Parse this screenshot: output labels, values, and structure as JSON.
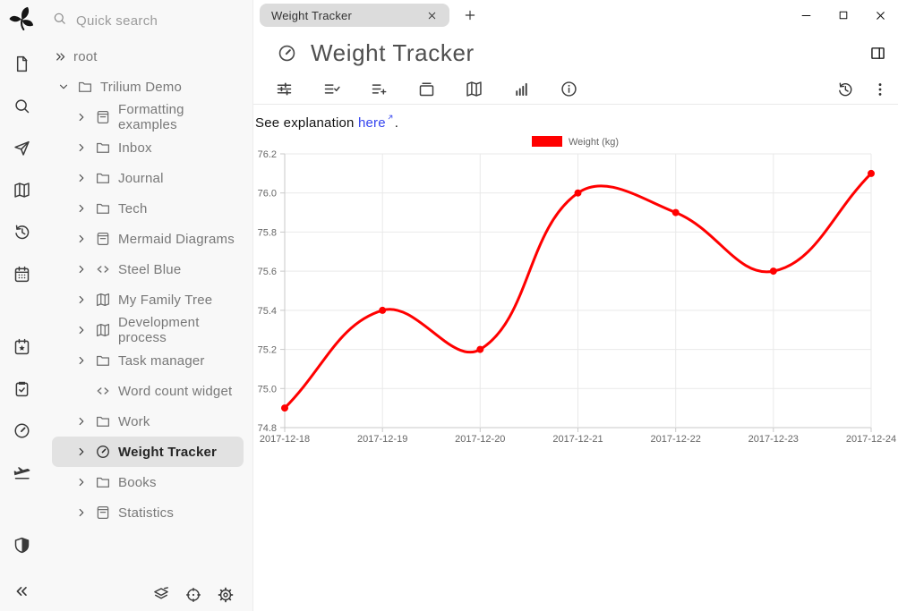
{
  "colors": {
    "sidebar_bg": "#f8f8f8",
    "selection_bg": "#e2e2e2",
    "tab_bg": "#dcdcdc",
    "divider": "#e9e9e9",
    "link": "#3545ef",
    "chart_grid": "#e9e9e9",
    "chart_axis": "#c9c9c9",
    "chart_label": "#666666",
    "chart_line": "#ff0000"
  },
  "search": {
    "placeholder": "Quick search"
  },
  "launcher": {
    "groups": [
      [
        {
          "name": "new-note",
          "icon": "file"
        },
        {
          "name": "search",
          "icon": "search"
        },
        {
          "name": "jump-to-note",
          "icon": "send"
        },
        {
          "name": "note-map",
          "icon": "map"
        },
        {
          "name": "recent-changes",
          "icon": "history"
        },
        {
          "name": "calendar",
          "icon": "calendar"
        }
      ],
      [
        {
          "name": "bookmarks",
          "icon": "calendar-star"
        },
        {
          "name": "task-manager",
          "icon": "task"
        },
        {
          "name": "weight-tracker",
          "icon": "gauge"
        },
        {
          "name": "travel",
          "icon": "plane"
        }
      ],
      [
        {
          "name": "protected-session",
          "icon": "shield"
        }
      ]
    ],
    "collapse": {
      "name": "collapse-pane",
      "icon": "chevrons-left"
    }
  },
  "tree": {
    "items": [
      {
        "label": "root",
        "icon": null,
        "expander": "chevrons-right",
        "level": 0,
        "selected": false
      },
      {
        "label": "Trilium Demo",
        "icon": "folder",
        "expander": "down",
        "level": 1,
        "selected": false
      },
      {
        "label": "Formatting examples",
        "icon": "book",
        "expander": "right",
        "level": 2,
        "selected": false
      },
      {
        "label": "Inbox",
        "icon": "folder",
        "expander": "right",
        "level": 2,
        "selected": false
      },
      {
        "label": "Journal",
        "icon": "folder",
        "expander": "right",
        "level": 2,
        "selected": false
      },
      {
        "label": "Tech",
        "icon": "folder",
        "expander": "right",
        "level": 2,
        "selected": false
      },
      {
        "label": "Mermaid Diagrams",
        "icon": "book",
        "expander": "right",
        "level": 2,
        "selected": false
      },
      {
        "label": "Steel Blue",
        "icon": "code",
        "expander": "right",
        "level": 2,
        "selected": false
      },
      {
        "label": "My Family Tree",
        "icon": "map",
        "expander": "right",
        "level": 2,
        "selected": false
      },
      {
        "label": "Development process",
        "icon": "map",
        "expander": "right",
        "level": 2,
        "selected": false
      },
      {
        "label": "Task manager",
        "icon": "folder",
        "expander": "right",
        "level": 2,
        "selected": false
      },
      {
        "label": "Word count widget",
        "icon": "code",
        "expander": null,
        "level": 2,
        "selected": false
      },
      {
        "label": "Work",
        "icon": "folder",
        "expander": "right",
        "level": 2,
        "selected": false
      },
      {
        "label": "Weight Tracker",
        "icon": "gauge",
        "expander": "right",
        "level": 2,
        "selected": true
      },
      {
        "label": "Books",
        "icon": "folder",
        "expander": "right",
        "level": 2,
        "selected": false
      },
      {
        "label": "Statistics",
        "icon": "book",
        "expander": "right",
        "level": 2,
        "selected": false
      }
    ],
    "footer": [
      {
        "name": "sync-status",
        "icon": "layers"
      },
      {
        "name": "scroll-to-active-note",
        "icon": "crosshair"
      },
      {
        "name": "settings",
        "icon": "gear"
      }
    ]
  },
  "titlebar": {
    "tab": {
      "label": "Weight Tracker"
    },
    "new_tab": {
      "name": "new-tab",
      "icon": "plus"
    },
    "window_controls": [
      {
        "name": "minimize",
        "icon": "minus"
      },
      {
        "name": "maximize",
        "icon": "square"
      },
      {
        "name": "close",
        "icon": "close"
      }
    ],
    "split_toggle": {
      "name": "toggle-right-pane",
      "icon": "split"
    }
  },
  "note": {
    "title": "Weight Tracker",
    "icon": "gauge",
    "explanation": {
      "prefix": "See explanation ",
      "link": "here",
      "suffix": "."
    }
  },
  "ribbon": {
    "tabs": [
      {
        "name": "basic-properties",
        "icon": "sliders"
      },
      {
        "name": "owned-attributes",
        "icon": "list-check"
      },
      {
        "name": "inherited-attributes",
        "icon": "list-plus"
      },
      {
        "name": "note-paths",
        "icon": "collection"
      },
      {
        "name": "note-map",
        "icon": "map"
      },
      {
        "name": "similar-notes",
        "icon": "bar-chart"
      },
      {
        "name": "note-info",
        "icon": "info"
      }
    ],
    "right": [
      {
        "name": "revisions",
        "icon": "history"
      },
      {
        "name": "note-menu",
        "icon": "kebab"
      }
    ]
  },
  "chart_data": {
    "type": "line",
    "x": [
      "2017-12-18",
      "2017-12-19",
      "2017-12-20",
      "2017-12-21",
      "2017-12-22",
      "2017-12-23",
      "2017-12-24"
    ],
    "series": [
      {
        "name": "Weight (kg)",
        "color": "#ff0000",
        "values": [
          74.9,
          75.4,
          75.2,
          76.0,
          75.9,
          75.6,
          76.1
        ]
      }
    ],
    "ylim": [
      74.8,
      76.2
    ],
    "ytick_step": 0.2,
    "grid": true,
    "legend_position": "top",
    "line_tension": 0.4,
    "point_radius": 4
  }
}
